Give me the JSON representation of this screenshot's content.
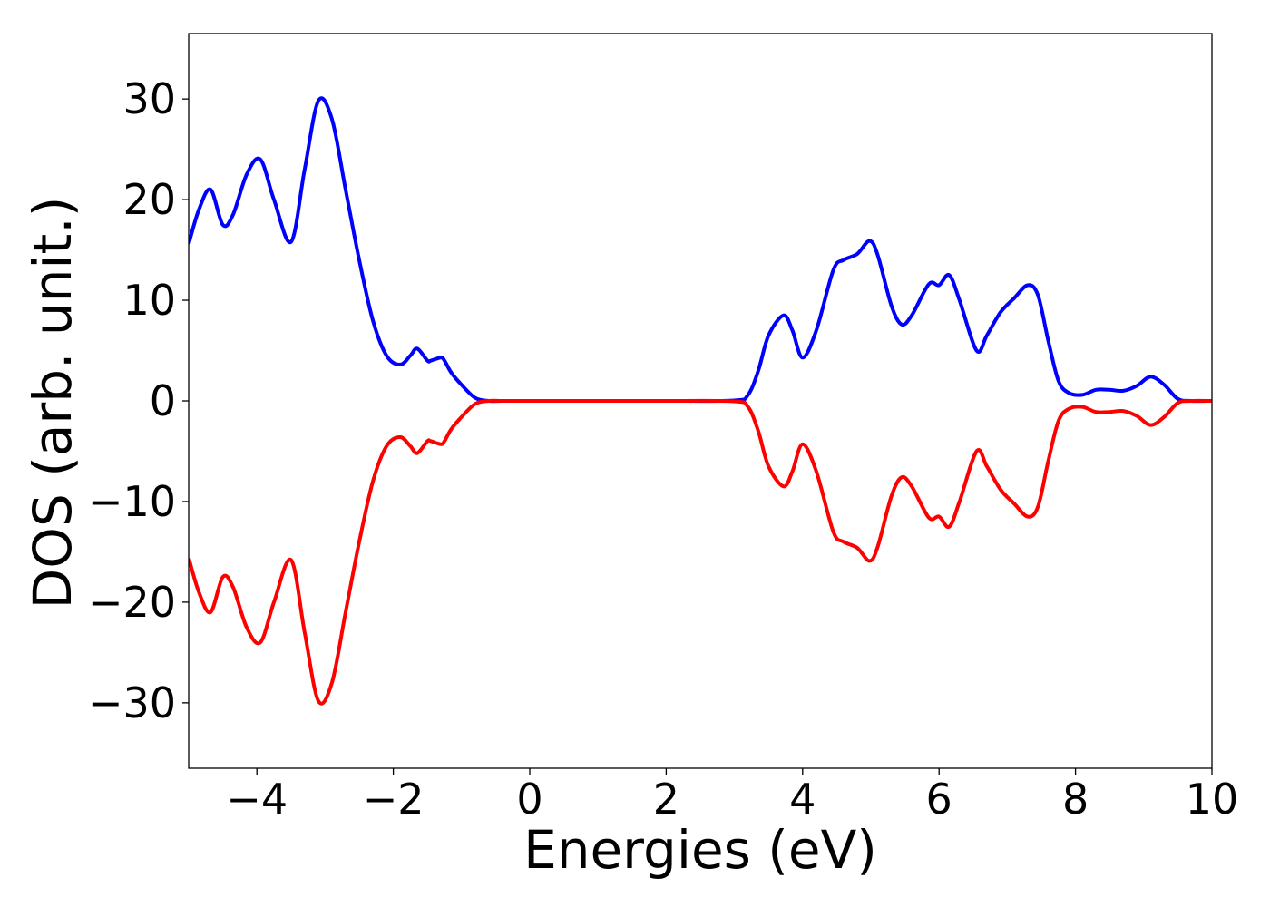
{
  "chart_data": {
    "type": "line",
    "title": "",
    "xlabel": "Energies (eV)",
    "ylabel": "DOS (arb. unit.)",
    "xlim": [
      -5,
      10
    ],
    "ylim": [
      -36.5,
      36.5
    ],
    "xticks": [
      -4,
      -2,
      0,
      2,
      4,
      6,
      8,
      10
    ],
    "xtick_labels": [
      "−4",
      "−2",
      "0",
      "2",
      "4",
      "6",
      "8",
      "10"
    ],
    "yticks": [
      30,
      20,
      10,
      0,
      -10,
      -20,
      -30
    ],
    "ytick_labels": [
      "30",
      "20",
      "10",
      "0",
      "−10",
      "−20",
      "−30"
    ],
    "grid": false,
    "legend": "none",
    "series": [
      {
        "color": "#0000ff",
        "x": [
          -5.0,
          -4.85,
          -4.68,
          -4.5,
          -4.35,
          -4.15,
          -3.95,
          -3.75,
          -3.5,
          -3.3,
          -3.1,
          -2.9,
          -2.7,
          -2.5,
          -2.3,
          -2.1,
          -1.9,
          -1.75,
          -1.65,
          -1.5,
          -1.45,
          -1.3,
          -1.25,
          -1.15,
          -1.0,
          -0.8,
          -0.6,
          -0.4,
          0.0,
          1.0,
          2.0,
          3.0,
          3.2,
          3.35,
          3.5,
          3.72,
          3.85,
          4.0,
          4.2,
          4.45,
          4.6,
          4.8,
          4.98,
          5.1,
          5.3,
          5.45,
          5.6,
          5.85,
          6.0,
          6.15,
          6.3,
          6.55,
          6.7,
          6.9,
          7.1,
          7.3,
          7.45,
          7.6,
          7.75,
          7.9,
          8.1,
          8.3,
          8.5,
          8.7,
          8.9,
          9.1,
          9.3,
          9.5,
          9.7,
          10.0
        ],
        "y": [
          15.6,
          19.0,
          21.0,
          17.5,
          18.5,
          22.5,
          24.0,
          20.0,
          15.8,
          23.0,
          29.8,
          28.0,
          21.0,
          14.0,
          8.0,
          4.5,
          3.6,
          4.5,
          5.2,
          4.0,
          4.0,
          4.3,
          4.0,
          2.8,
          1.6,
          0.3,
          0.0,
          0.0,
          0.0,
          0.0,
          0.0,
          0.05,
          0.6,
          3.0,
          6.5,
          8.5,
          7.0,
          4.3,
          7.0,
          13.0,
          14.0,
          14.6,
          15.9,
          14.5,
          9.5,
          7.6,
          8.5,
          11.6,
          11.5,
          12.5,
          10.0,
          5.0,
          6.5,
          8.8,
          10.2,
          11.5,
          10.5,
          6.0,
          2.0,
          0.8,
          0.6,
          1.1,
          1.1,
          1.0,
          1.5,
          2.4,
          1.6,
          0.2,
          0.0,
          0.0
        ]
      },
      {
        "color": "#ff0000",
        "x": [
          -5.0,
          -4.85,
          -4.68,
          -4.5,
          -4.35,
          -4.15,
          -3.95,
          -3.75,
          -3.5,
          -3.3,
          -3.1,
          -2.9,
          -2.7,
          -2.5,
          -2.3,
          -2.1,
          -1.9,
          -1.75,
          -1.65,
          -1.5,
          -1.45,
          -1.3,
          -1.25,
          -1.15,
          -1.0,
          -0.8,
          -0.6,
          -0.4,
          0.0,
          1.0,
          2.0,
          3.0,
          3.2,
          3.35,
          3.5,
          3.72,
          3.85,
          4.0,
          4.2,
          4.45,
          4.6,
          4.8,
          4.98,
          5.1,
          5.3,
          5.45,
          5.6,
          5.85,
          6.0,
          6.15,
          6.3,
          6.55,
          6.7,
          6.9,
          7.1,
          7.3,
          7.45,
          7.6,
          7.75,
          7.9,
          8.1,
          8.3,
          8.5,
          8.7,
          8.9,
          9.1,
          9.3,
          9.5,
          9.7,
          10.0
        ],
        "y": [
          -15.6,
          -19.0,
          -21.0,
          -17.5,
          -18.5,
          -22.5,
          -24.0,
          -20.0,
          -15.8,
          -23.0,
          -29.8,
          -28.0,
          -21.0,
          -14.0,
          -8.0,
          -4.5,
          -3.6,
          -4.5,
          -5.2,
          -4.0,
          -4.0,
          -4.3,
          -4.0,
          -2.8,
          -1.6,
          -0.3,
          0.0,
          0.0,
          0.0,
          0.0,
          0.0,
          -0.05,
          -0.6,
          -3.0,
          -6.5,
          -8.5,
          -7.0,
          -4.3,
          -7.0,
          -13.0,
          -14.0,
          -14.6,
          -15.9,
          -14.5,
          -9.5,
          -7.6,
          -8.5,
          -11.6,
          -11.5,
          -12.5,
          -10.0,
          -5.0,
          -6.5,
          -8.8,
          -10.2,
          -11.5,
          -10.5,
          -6.0,
          -2.0,
          -0.8,
          -0.6,
          -1.1,
          -1.1,
          -1.0,
          -1.5,
          -2.4,
          -1.6,
          -0.2,
          0.0,
          0.0
        ]
      }
    ]
  }
}
